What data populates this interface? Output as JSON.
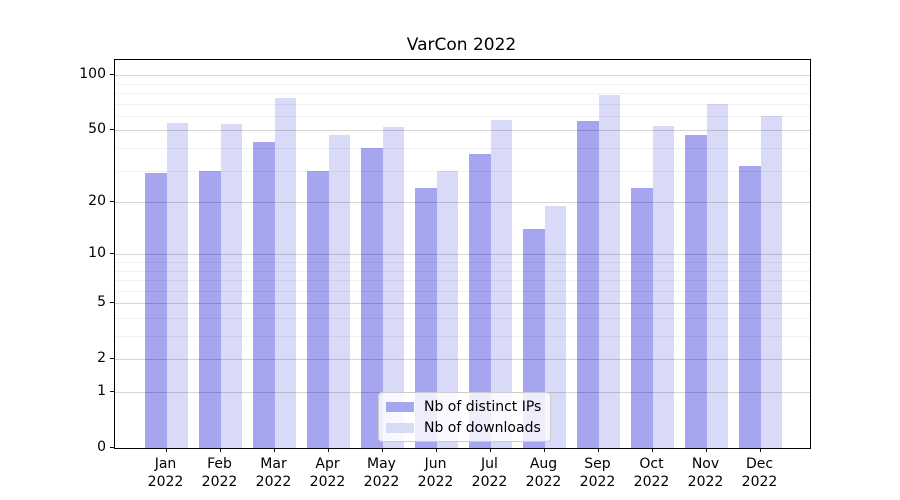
{
  "title": "VarCon 2022",
  "legend": {
    "items": [
      {
        "label": "Nb of distinct IPs",
        "color": "#a5a5f0"
      },
      {
        "label": "Nb of downloads",
        "color": "#d9d9f8"
      }
    ]
  },
  "axes": {
    "y_major_tick_labels": [
      "100",
      "50",
      "20",
      "10",
      "5",
      "2",
      "1",
      "0"
    ],
    "x_tick_year": "2022"
  },
  "chart_data": {
    "type": "bar",
    "title": "VarCon 2022",
    "categories": [
      "Jan",
      "Feb",
      "Mar",
      "Apr",
      "May",
      "Jun",
      "Jul",
      "Aug",
      "Sep",
      "Oct",
      "Nov",
      "Dec"
    ],
    "category_year": "2022",
    "series": [
      {
        "name": "Nb of distinct IPs",
        "color": "#a5a5f0",
        "values": [
          29,
          30,
          43,
          30,
          40,
          24,
          37,
          14,
          56,
          24,
          47,
          32
        ]
      },
      {
        "name": "Nb of downloads",
        "color": "#d9d9f8",
        "values": [
          55,
          54,
          75,
          47,
          52,
          30,
          57,
          19,
          78,
          53,
          70,
          60
        ]
      }
    ],
    "yscale": "log1p",
    "ylim": [
      0,
      121
    ],
    "y_major_ticks": [
      0,
      1,
      2,
      5,
      10,
      20,
      50,
      100
    ],
    "y_minor_ticks": [
      3,
      4,
      6,
      7,
      8,
      9,
      30,
      40,
      60,
      70,
      80,
      90
    ],
    "grid": "both",
    "legend_position": "lower center",
    "xlabel": "",
    "ylabel": ""
  }
}
